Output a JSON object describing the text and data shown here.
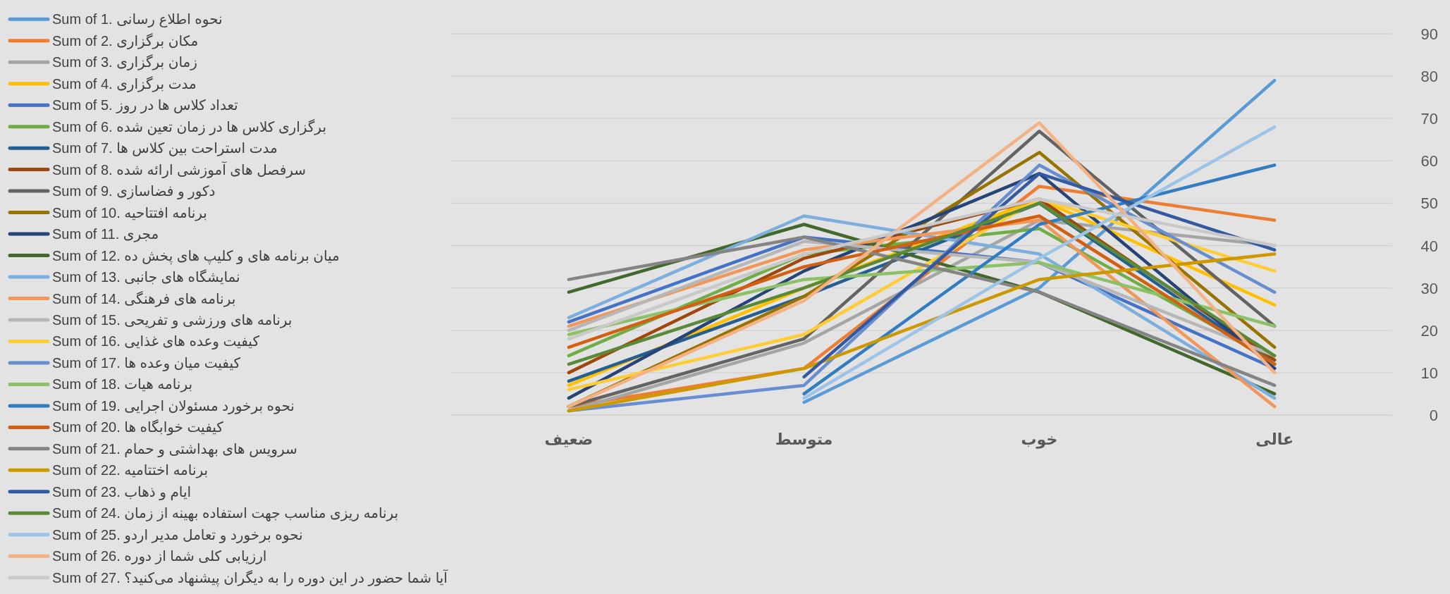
{
  "chart_data": {
    "type": "line",
    "categories": [
      "ضعیف",
      "متوسط",
      "خوب",
      "عالی"
    ],
    "ylim": [
      0,
      90
    ],
    "yticks": [
      0,
      10,
      20,
      30,
      40,
      50,
      60,
      70,
      80,
      90
    ],
    "grid": "y",
    "legend": "left",
    "marker": "none",
    "line_style": "solid",
    "series": [
      {
        "name": "Sum of 1. نحوه اطلاع رسانی",
        "color": "#5b9bd5",
        "values": [
          null,
          3,
          30,
          79
        ]
      },
      {
        "name": "Sum of 2. مکان برگزاری",
        "color": "#ed7d31",
        "values": [
          2,
          11,
          54,
          46
        ]
      },
      {
        "name": "Sum of 3. زمان برگزاری",
        "color": "#a5a5a5",
        "values": [
          1,
          17,
          46,
          40
        ]
      },
      {
        "name": "Sum of 4. مدت برگزاری",
        "color": "#ffc000",
        "values": [
          7,
          30,
          51,
          26
        ]
      },
      {
        "name": "Sum of 5. تعداد کلاس ها در روز",
        "color": "#4472c4",
        "values": [
          22,
          42,
          36,
          11
        ]
      },
      {
        "name": "Sum of 6. برگزاری کلاس ها در زمان تعین شده",
        "color": "#70ad47",
        "values": [
          14,
          38,
          44,
          13
        ]
      },
      {
        "name": "Sum of 7. مدت استراحت بین کلاس ها",
        "color": "#255e91",
        "values": [
          8,
          28,
          50,
          12
        ]
      },
      {
        "name": "Sum of 8. سرفصل های آموزشی ارائه شده",
        "color": "#9e480e",
        "values": [
          10,
          37,
          51,
          13
        ]
      },
      {
        "name": "Sum of 9. دکور و فضاسازی",
        "color": "#636363",
        "values": [
          2,
          18,
          67,
          21
        ]
      },
      {
        "name": "Sum of 10. برنامه افتتاحیه",
        "color": "#997300",
        "values": [
          2,
          28,
          62,
          16
        ]
      },
      {
        "name": "Sum of 11. مجری",
        "color": "#264478",
        "values": [
          4,
          34,
          57,
          11
        ]
      },
      {
        "name": "Sum of 12. میان برنامه های و کلیپ های پخش ده",
        "color": "#43682b",
        "values": [
          29,
          45,
          29,
          5
        ]
      },
      {
        "name": "Sum of 13. نمایشگاه های جانبی",
        "color": "#7cafdd",
        "values": [
          23,
          47,
          38,
          4
        ]
      },
      {
        "name": "Sum of 14. برنامه های فرهنگی",
        "color": "#f1975a",
        "values": [
          21,
          39,
          46,
          2
        ]
      },
      {
        "name": "Sum of 15. برنامه های ورزشی و تفریحی",
        "color": "#b7b7b7",
        "values": [
          20,
          41,
          36,
          14
        ]
      },
      {
        "name": "Sum of 16. کیفیت وعده های غذایی",
        "color": "#ffcd33",
        "values": [
          6,
          19,
          51,
          34
        ]
      },
      {
        "name": "Sum of 17. کیفیت میان وعده ها",
        "color": "#698ed0",
        "values": [
          1,
          7,
          59,
          29
        ]
      },
      {
        "name": "Sum of 18. برنامه هیات",
        "color": "#8cc168",
        "values": [
          19,
          32,
          36,
          21
        ]
      },
      {
        "name": "Sum of 19. نحوه برخورد مسئولان اجرایی",
        "color": "#327dc2",
        "values": [
          null,
          5,
          45,
          59
        ]
      },
      {
        "name": "Sum of 20. کیفیت خوابگاه ها",
        "color": "#d26012",
        "values": [
          16,
          35,
          47,
          12
        ]
      },
      {
        "name": "Sum of 21. سرویس های بهداشتی و حمام",
        "color": "#848484",
        "values": [
          32,
          42,
          29,
          7
        ]
      },
      {
        "name": "Sum of 22. برنامه اختتامیه",
        "color": "#cc9a00",
        "values": [
          1,
          11,
          32,
          38
        ]
      },
      {
        "name": "Sum of 23. ایام و ذهاب",
        "color": "#335aa1",
        "values": [
          null,
          9,
          57,
          39
        ]
      },
      {
        "name": "Sum of 24. برنامه ریزی مناسب جهت استفاده بهینه از زمان",
        "color": "#5a8a39",
        "values": [
          12,
          30,
          50,
          14
        ]
      },
      {
        "name": "Sum of 25. نحوه برخورد و تعامل مدیر اردو",
        "color": "#9dc3e6",
        "values": [
          null,
          4,
          37,
          68
        ]
      },
      {
        "name": "Sum of 26. ارزیابی کلی شما از دوره",
        "color": "#f4b183",
        "values": [
          2,
          27,
          69,
          10
        ]
      },
      {
        "name": "Sum of 27. آیا شما حضور در این دوره را به دیگران پیشنهاد می‌کنید؟",
        "color": "#c9c9c9",
        "values": [
          18,
          38,
          51,
          40
        ]
      }
    ]
  }
}
